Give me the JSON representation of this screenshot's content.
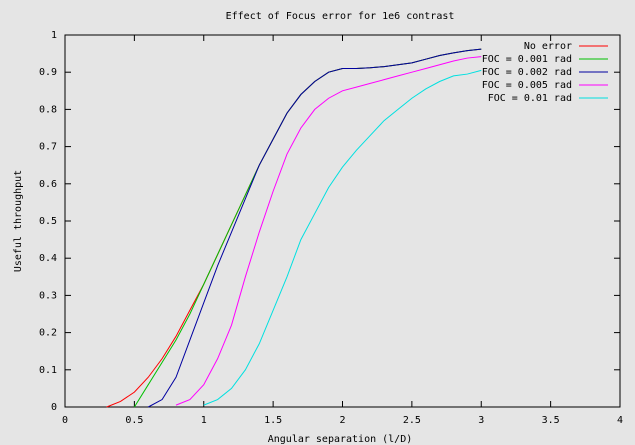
{
  "chart_data": {
    "type": "line",
    "title": "Effect of Focus error for 1e6 contrast",
    "x_label": "Angular separation (l/D)",
    "y_label": "Useful throughput",
    "x": [
      0.3,
      0.4,
      0.5,
      0.6,
      0.7,
      0.8,
      0.9,
      1.0,
      1.1,
      1.2,
      1.3,
      1.4,
      1.5,
      1.6,
      1.7,
      1.8,
      1.9,
      2.0,
      2.1,
      2.2,
      2.3,
      2.4,
      2.5,
      2.6,
      2.7,
      2.8,
      2.9,
      3.0
    ],
    "series": [
      {
        "name": "No error",
        "color": "#ff0000",
        "values": [
          0,
          0.015,
          0.04,
          0.08,
          0.13,
          0.19,
          0.26,
          0.33,
          0.41,
          0.49,
          0.57,
          0.65,
          0.72,
          0.79,
          0.84,
          0.875,
          0.9,
          0.91,
          0.91,
          0.912,
          0.915,
          0.92,
          0.925,
          0.935,
          0.945,
          0.952,
          0.958,
          0.962
        ]
      },
      {
        "name": "FOC = 0.001 rad",
        "color": "#00c000",
        "values": [
          null,
          null,
          0,
          0.06,
          0.12,
          0.18,
          0.25,
          0.33,
          0.41,
          0.49,
          0.57,
          0.65,
          0.72,
          0.79,
          0.84,
          0.875,
          0.9,
          0.91,
          0.91,
          0.912,
          0.915,
          0.92,
          0.925,
          0.935,
          0.945,
          0.952,
          0.958,
          0.962
        ]
      },
      {
        "name": "FOC = 0.002 rad",
        "color": "#0000a0",
        "values": [
          null,
          null,
          null,
          0,
          0.02,
          0.08,
          0.18,
          0.28,
          0.38,
          0.47,
          0.56,
          0.65,
          0.72,
          0.79,
          0.84,
          0.875,
          0.9,
          0.91,
          0.91,
          0.912,
          0.915,
          0.92,
          0.925,
          0.935,
          0.945,
          0.952,
          0.958,
          0.962
        ]
      },
      {
        "name": "FOC = 0.005 rad",
        "color": "#ff00ff",
        "values": [
          null,
          null,
          null,
          null,
          null,
          0.005,
          0.02,
          0.06,
          0.13,
          0.22,
          0.35,
          0.47,
          0.58,
          0.68,
          0.75,
          0.8,
          0.83,
          0.85,
          0.86,
          0.87,
          0.88,
          0.89,
          0.9,
          0.91,
          0.92,
          0.93,
          0.938,
          0.942
        ]
      },
      {
        "name": "FOC = 0.01 rad",
        "color": "#00e0e0",
        "values": [
          null,
          null,
          null,
          null,
          null,
          null,
          null,
          0.005,
          0.02,
          0.05,
          0.1,
          0.17,
          0.26,
          0.35,
          0.45,
          0.52,
          0.59,
          0.645,
          0.69,
          0.73,
          0.77,
          0.8,
          0.83,
          0.855,
          0.875,
          0.89,
          0.895,
          0.905
        ]
      }
    ],
    "xlim": [
      0,
      4
    ],
    "ylim": [
      0,
      1
    ],
    "xticks": [
      0,
      0.5,
      1,
      1.5,
      2,
      2.5,
      3,
      3.5,
      4
    ],
    "yticks": [
      0,
      0.1,
      0.2,
      0.3,
      0.4,
      0.5,
      0.6,
      0.7,
      0.8,
      0.9,
      1
    ],
    "legend": "top-right"
  }
}
